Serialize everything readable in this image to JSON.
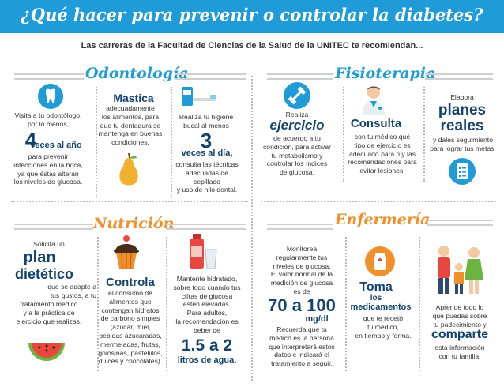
{
  "header": {
    "title": "¿Qué hacer para prevenir o controlar la diabetes?",
    "subtitle": "Las carreras de la Facultad de Ciencias de  la Salud de la UNITEC te recomiendan..."
  },
  "odontologia": {
    "title": "Odontología",
    "col1": {
      "pre": "Visita a tu odontólogo,\npor lo menos,",
      "big": "4",
      "unit": "veces al año",
      "post": "para prevenir\ninfecciones en la boca,\nya que éstas alteran\nlos niveles de glucosa."
    },
    "col2": {
      "big": "Mastica",
      "text": "adecuadamente\nlos alimentos, para\nque tu dentadura se\nmantenga en buenas\ncondiciones."
    },
    "col3": {
      "pre": "Realiza tu higiene\nbucal al menos",
      "big": "3",
      "unit": "veces al día,",
      "post": "consulta las técnicas\nadecuadas de\ncepillado\ny uso de hilo dental."
    }
  },
  "fisioterapia": {
    "title": "Fisioterapia",
    "col1": {
      "pre": "Realiza",
      "big": "ejercicio",
      "text": "de acuerdo a tu\ncondición, para activar\ntu metabolismo y\ncontrolar los índices\nde glucosa."
    },
    "col2": {
      "big": "Consulta",
      "text": "con tu médico qué\ntipo de ejercicio es\nadecuado para ti y las\nrecomendaciones para\nevitar lesiones."
    },
    "col3": {
      "pre": "Elabora",
      "big1": "planes",
      "big2": "reales",
      "text": "y dales seguimiento\npara lograr tus metas."
    }
  },
  "nutricion": {
    "title": "Nutrición",
    "col1": {
      "pre": "Solicita un",
      "big1": "plan",
      "big2": "dietético",
      "text1": "que se adapte a\ntus gustos, a tu",
      "text2": "tratamiento médico\ny a la práctica de\nejercicio que realizas."
    },
    "col2": {
      "big": "Controla",
      "text": "el consumo de\nalimentos que\ncontengan hidratos\nde carbono simples\n(azúcar, miel,\nbebidas azucaradas,\nmermeladas, frutas,\ngolosinas, pasteliilos,\ndulces y chocolates)."
    },
    "col3": {
      "text": "Mantente hidratado,\nsobre todo cuando tus\ncifras de glucosa\nestén elevadas.\nPara adultos,\nla recomendación es\nbeber de",
      "big": "1.5 a 2",
      "unit": "litros de agua."
    }
  },
  "enfermeria": {
    "title": "Enfermería",
    "col1": {
      "pre": "Monitorea\nregularmente tus\nniveles de glucosa.\nEl valor normal de la\nmedición de glucosa\nes de",
      "big": "70 a 100",
      "unit": "mg/dl",
      "post": "Recuerda que tu\nmédico es la persona\nque interpretará estos\ndatos e indicará el\ntratamiento a seguir."
    },
    "col2": {
      "big": "Toma",
      "sub1": "los",
      "sub2": "medicamentos",
      "text": "que te recetó\ntu médico,\nen tiempo y forma."
    },
    "col3": {
      "pre": "Aprende todo lo\nque puedas sobre\ntu padecimiento y",
      "big": "comparte",
      "post": "esta información\ncon tu familia."
    }
  }
}
